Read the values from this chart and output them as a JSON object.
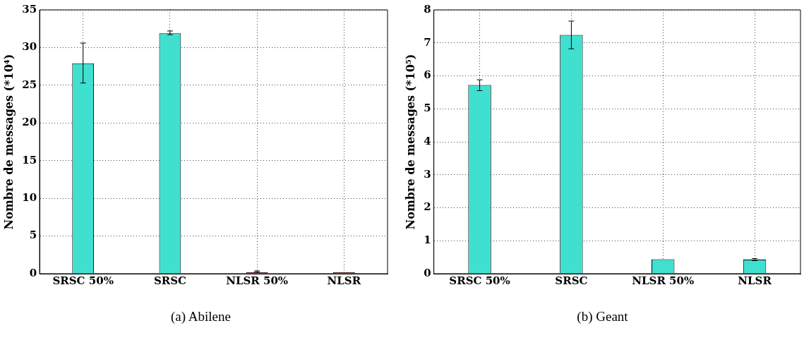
{
  "chart_data": [
    {
      "type": "bar",
      "title": "(a) Abilene",
      "ylabel": "Nombre de messages (*10⁴)",
      "categories": [
        "SRSC 50%",
        "SRSC",
        "NLSR 50%",
        "NLSR"
      ],
      "values": [
        27.9,
        31.9,
        0.2,
        0.2
      ],
      "colors": [
        "#40e0d0",
        "#40e0d0",
        "#cc0000",
        "#cc0000"
      ],
      "errors": [
        [
          25.3,
          30.6
        ],
        [
          31.7,
          32.2
        ],
        [
          0.2,
          0.37
        ],
        null
      ],
      "ylim": [
        0,
        35
      ],
      "yticks": [
        0,
        5,
        10,
        15,
        20,
        25,
        30,
        35
      ],
      "grid": true
    },
    {
      "type": "bar",
      "title": "(b) Geant",
      "ylabel": "Nombre de messages (*10⁵)",
      "categories": [
        "SRSC 50%",
        "SRSC",
        "NLSR 50%",
        "NLSR"
      ],
      "values": [
        5.72,
        7.24,
        0.44,
        0.43
      ],
      "colors": [
        "#40e0d0",
        "#40e0d0",
        "#40e0d0",
        "#40e0d0"
      ],
      "errors": [
        [
          5.55,
          5.88
        ],
        [
          6.82,
          7.66
        ],
        null,
        [
          0.4,
          0.46
        ]
      ],
      "ylim": [
        0,
        8
      ],
      "yticks": [
        0,
        1,
        2,
        3,
        4,
        5,
        6,
        7,
        8
      ],
      "grid": true
    }
  ]
}
